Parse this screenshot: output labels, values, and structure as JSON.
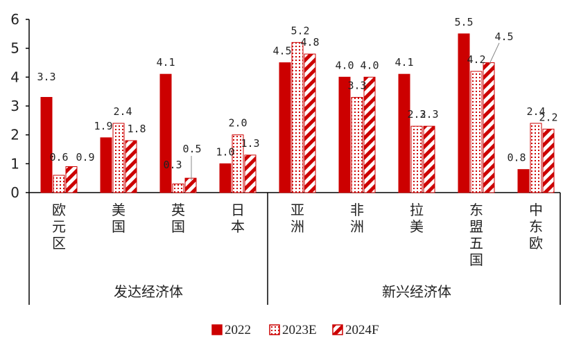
{
  "colors": {
    "accent": "#cc0000",
    "text": "#222222",
    "axis": "#000000"
  },
  "chart_data": {
    "type": "bar",
    "title": "",
    "xlabel": "",
    "ylabel": "",
    "ylim": [
      0,
      6
    ],
    "yticks": [
      "0",
      "1",
      "2",
      "3",
      "4",
      "5",
      "6"
    ],
    "categories": [
      [
        "欧",
        "元",
        "区"
      ],
      [
        "美",
        "国"
      ],
      [
        "英",
        "国"
      ],
      [
        "日",
        "本"
      ],
      [
        "亚",
        "洲"
      ],
      [
        "非",
        "洲"
      ],
      [
        "拉",
        "美"
      ],
      [
        "东",
        "盟",
        "五",
        "国"
      ],
      [
        "中",
        "东",
        "欧"
      ]
    ],
    "groups": [
      {
        "label": "发达经济体",
        "count": 4
      },
      {
        "label": "新兴经济体",
        "count": 5
      }
    ],
    "series": [
      {
        "name": "2022",
        "pattern": "solid",
        "values": [
          3.3,
          1.9,
          4.1,
          1.0,
          4.5,
          4.0,
          4.1,
          5.5,
          0.8
        ],
        "labels": [
          "3.3",
          "1.9",
          "4.1",
          "1.0",
          "4.5",
          "4.0",
          "4.1",
          "5.5",
          "0.8"
        ]
      },
      {
        "name": "2023E",
        "pattern": "dots",
        "values": [
          0.6,
          2.4,
          0.3,
          2.0,
          5.2,
          3.3,
          2.3,
          4.2,
          2.4
        ],
        "labels": [
          "0.6",
          "2.4",
          "0.3",
          "2.0",
          "5.2",
          "3.3",
          "2.3",
          "4.2",
          "2.4"
        ]
      },
      {
        "name": "2024F",
        "pattern": "stripes",
        "values": [
          0.9,
          1.8,
          0.5,
          1.3,
          4.8,
          4.0,
          2.3,
          4.5,
          2.2
        ],
        "labels": [
          "0.9",
          "1.8",
          "0.5",
          "1.3",
          "4.8",
          "4.0",
          "2.3",
          "4.5",
          "2.2"
        ]
      }
    ],
    "legend": "bottom",
    "grid": false
  }
}
